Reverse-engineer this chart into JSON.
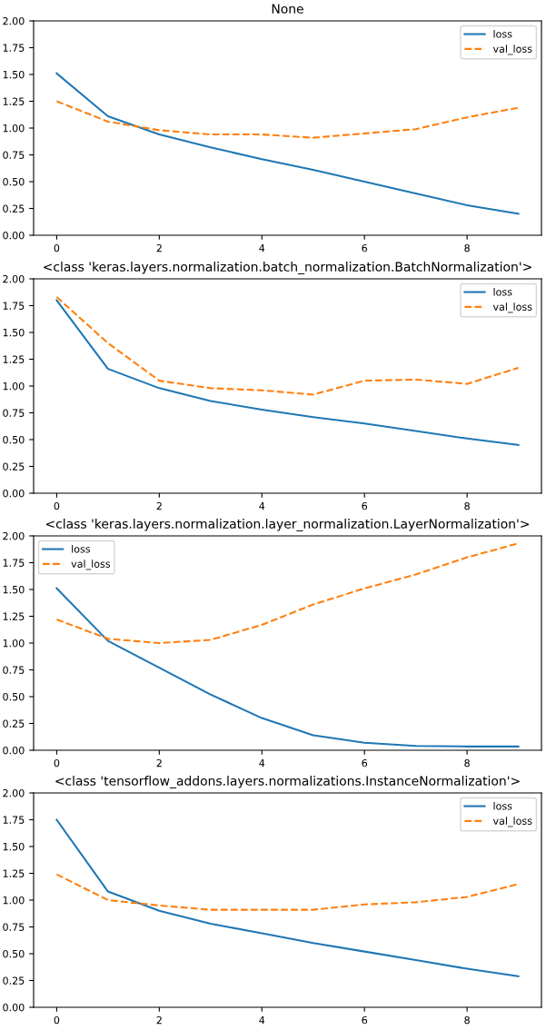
{
  "chart_data": [
    {
      "type": "line",
      "title": "None",
      "x": [
        0,
        1,
        2,
        3,
        4,
        5,
        6,
        7,
        8,
        9
      ],
      "xlim": [
        -0.45,
        9.45
      ],
      "xticks": [
        0,
        2,
        4,
        6,
        8
      ],
      "ylim": [
        0,
        2
      ],
      "yticks": [
        {
          "value": 0,
          "label": "0.00"
        },
        {
          "value": 0.25,
          "label": "0.25"
        },
        {
          "value": 0.5,
          "label": "0.50"
        },
        {
          "value": 0.75,
          "label": "0.75"
        },
        {
          "value": 1,
          "label": "1.00"
        },
        {
          "value": 1.25,
          "label": "1.25"
        },
        {
          "value": 1.5,
          "label": "1.50"
        },
        {
          "value": 1.75,
          "label": "1.75"
        },
        {
          "value": 2,
          "label": "2.00"
        }
      ],
      "legend": "top right",
      "grid": false,
      "series": [
        {
          "name": "loss",
          "color": "#1f77b4",
          "line_style": "solid",
          "values": [
            1.51,
            1.11,
            0.94,
            0.82,
            0.71,
            0.61,
            0.5,
            0.39,
            0.28,
            0.2
          ]
        },
        {
          "name": "val_loss",
          "color": "#ff7f0e",
          "line_style": "dashed",
          "values": [
            1.25,
            1.06,
            0.98,
            0.94,
            0.94,
            0.91,
            0.95,
            0.99,
            1.1,
            1.19
          ]
        }
      ]
    },
    {
      "type": "line",
      "title": "<class 'keras.layers.normalization.batch_normalization.BatchNormalization'>",
      "x": [
        0,
        1,
        2,
        3,
        4,
        5,
        6,
        7,
        8,
        9
      ],
      "xlim": [
        -0.45,
        9.45
      ],
      "xticks": [
        0,
        2,
        4,
        6,
        8
      ],
      "ylim": [
        0,
        2
      ],
      "yticks": [
        {
          "value": 0,
          "label": "0.00"
        },
        {
          "value": 0.25,
          "label": "0.25"
        },
        {
          "value": 0.5,
          "label": "0.50"
        },
        {
          "value": 0.75,
          "label": "0.75"
        },
        {
          "value": 1,
          "label": "1.00"
        },
        {
          "value": 1.25,
          "label": "1.25"
        },
        {
          "value": 1.5,
          "label": "1.50"
        },
        {
          "value": 1.75,
          "label": "1.75"
        },
        {
          "value": 2,
          "label": "2.00"
        }
      ],
      "legend": "top right",
      "grid": false,
      "series": [
        {
          "name": "loss",
          "color": "#1f77b4",
          "line_style": "solid",
          "values": [
            1.8,
            1.16,
            0.98,
            0.86,
            0.78,
            0.71,
            0.65,
            0.58,
            0.51,
            0.45
          ]
        },
        {
          "name": "val_loss",
          "color": "#ff7f0e",
          "line_style": "dashed",
          "values": [
            1.83,
            1.4,
            1.05,
            0.98,
            0.96,
            0.92,
            1.05,
            1.06,
            1.02,
            1.17
          ]
        }
      ]
    },
    {
      "type": "line",
      "title": "<class 'keras.layers.normalization.layer_normalization.LayerNormalization'>",
      "x": [
        0,
        1,
        2,
        3,
        4,
        5,
        6,
        7,
        8,
        9
      ],
      "xlim": [
        -0.45,
        9.45
      ],
      "xticks": [
        0,
        2,
        4,
        6,
        8
      ],
      "ylim": [
        0,
        2
      ],
      "yticks": [
        {
          "value": 0,
          "label": "0.00"
        },
        {
          "value": 0.25,
          "label": "0.25"
        },
        {
          "value": 0.5,
          "label": "0.50"
        },
        {
          "value": 0.75,
          "label": "0.75"
        },
        {
          "value": 1,
          "label": "1.00"
        },
        {
          "value": 1.25,
          "label": "1.25"
        },
        {
          "value": 1.5,
          "label": "1.50"
        },
        {
          "value": 1.75,
          "label": "1.75"
        },
        {
          "value": 2,
          "label": "2.00"
        }
      ],
      "legend": "top left",
      "grid": false,
      "series": [
        {
          "name": "loss",
          "color": "#1f77b4",
          "line_style": "solid",
          "values": [
            1.51,
            1.02,
            0.77,
            0.52,
            0.3,
            0.14,
            0.07,
            0.04,
            0.035,
            0.035
          ]
        },
        {
          "name": "val_loss",
          "color": "#ff7f0e",
          "line_style": "dashed",
          "values": [
            1.22,
            1.04,
            1.0,
            1.03,
            1.17,
            1.36,
            1.51,
            1.64,
            1.8,
            1.93
          ]
        }
      ]
    },
    {
      "type": "line",
      "title": "<class 'tensorflow_addons.layers.normalizations.InstanceNormalization'>",
      "x": [
        0,
        1,
        2,
        3,
        4,
        5,
        6,
        7,
        8,
        9
      ],
      "xlim": [
        -0.45,
        9.45
      ],
      "xticks": [
        0,
        2,
        4,
        6,
        8
      ],
      "ylim": [
        0,
        2
      ],
      "yticks": [
        {
          "value": 0,
          "label": "0.00"
        },
        {
          "value": 0.25,
          "label": "0.25"
        },
        {
          "value": 0.5,
          "label": "0.50"
        },
        {
          "value": 0.75,
          "label": "0.75"
        },
        {
          "value": 1,
          "label": "1.00"
        },
        {
          "value": 1.25,
          "label": "1.25"
        },
        {
          "value": 1.5,
          "label": "1.50"
        },
        {
          "value": 1.75,
          "label": "1.75"
        },
        {
          "value": 2,
          "label": "2.00"
        }
      ],
      "legend": "top right",
      "grid": false,
      "series": [
        {
          "name": "loss",
          "color": "#1f77b4",
          "line_style": "solid",
          "values": [
            1.75,
            1.08,
            0.9,
            0.78,
            0.69,
            0.6,
            0.52,
            0.44,
            0.36,
            0.29
          ]
        },
        {
          "name": "val_loss",
          "color": "#ff7f0e",
          "line_style": "dashed",
          "values": [
            1.24,
            1.0,
            0.95,
            0.91,
            0.91,
            0.91,
            0.96,
            0.98,
            1.03,
            1.15
          ]
        }
      ]
    }
  ]
}
